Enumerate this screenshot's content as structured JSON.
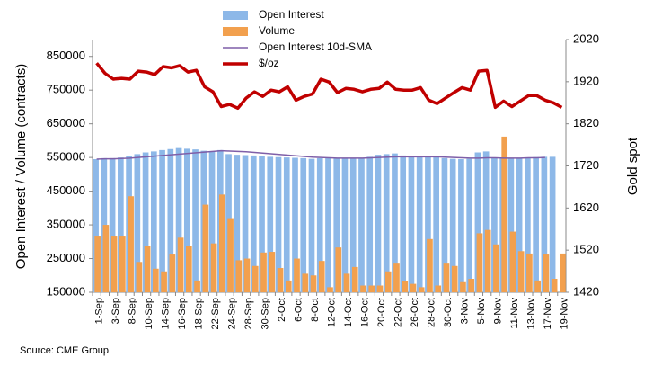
{
  "chart_data": {
    "type": "bar",
    "source": "Source: CME Group",
    "ylabel": "Open Interest / Volume (contracts)",
    "y2label": "Gold spot",
    "categories": [
      "1-Sep",
      null,
      "3-Sep",
      null,
      "8-Sep",
      null,
      "10-Sep",
      null,
      "14-Sep",
      null,
      "16-Sep",
      null,
      "18-Sep",
      null,
      "22-Sep",
      null,
      "24-Sep",
      null,
      "28-Sep",
      null,
      "30-Sep",
      null,
      "2-Oct",
      null,
      "6-Oct",
      null,
      "8-Oct",
      null,
      "12-Oct",
      null,
      "14-Oct",
      null,
      "16-Oct",
      null,
      "20-Oct",
      null,
      "22-Oct",
      null,
      "26-Oct",
      null,
      "28-Oct",
      null,
      "30-Oct",
      null,
      "3-Nov",
      null,
      "5-Nov",
      null,
      "9-Nov",
      null,
      "11-Nov",
      null,
      "13-Nov",
      null,
      "17-Nov",
      null,
      "19-Nov"
    ],
    "ylim": [
      150000,
      900000
    ],
    "yticks": [
      150000,
      250000,
      350000,
      450000,
      550000,
      650000,
      750000,
      850000
    ],
    "y2lim": [
      1420,
      2020
    ],
    "y2ticks": [
      1420,
      1520,
      1620,
      1720,
      1820,
      1920,
      2020
    ],
    "series": [
      {
        "name": "Open Interest",
        "type": "bar",
        "color": "#8db8e8",
        "values": [
          545000,
          548000,
          548000,
          550000,
          555000,
          560000,
          565000,
          568000,
          572000,
          575000,
          578000,
          576000,
          574000,
          570000,
          568000,
          572000,
          560000,
          558000,
          557000,
          556000,
          553000,
          552000,
          551000,
          550000,
          549000,
          548000,
          546000,
          548000,
          550000,
          549000,
          548000,
          547000,
          548000,
          552000,
          558000,
          560000,
          562000,
          556000,
          555000,
          554000,
          553000,
          552000,
          548000,
          546000,
          545000,
          546000,
          565000,
          568000,
          548000,
          547000,
          548000,
          549000,
          550000,
          551000,
          552000,
          552000,
          null
        ]
      },
      {
        "name": "Volume",
        "type": "bar",
        "color": "#f2a04e",
        "values": [
          318000,
          350000,
          318000,
          318000,
          435000,
          240000,
          288000,
          220000,
          212000,
          262000,
          312000,
          288000,
          185000,
          410000,
          295000,
          440000,
          370000,
          245000,
          250000,
          228000,
          268000,
          270000,
          222000,
          185000,
          250000,
          205000,
          200000,
          243000,
          165000,
          283000,
          205000,
          225000,
          170000,
          170000,
          170000,
          212000,
          235000,
          182000,
          175000,
          165000,
          308000,
          170000,
          235000,
          228000,
          180000,
          190000,
          325000,
          335000,
          292000,
          612000,
          330000,
          272000,
          265000,
          185000,
          262000,
          190000,
          265000
        ]
      },
      {
        "name": "Open Interest 10d-SMA",
        "type": "line",
        "color": "#7f5fa8",
        "values": [
          545000,
          546000,
          546000,
          547000,
          548000,
          550000,
          552000,
          554000,
          556000,
          558000,
          560000,
          562000,
          564000,
          566000,
          568000,
          570000,
          569000,
          568000,
          567000,
          565000,
          563000,
          561000,
          559000,
          557000,
          555000,
          553000,
          551000,
          550000,
          549000,
          548000,
          548000,
          548000,
          548000,
          549000,
          550000,
          551000,
          552000,
          552000,
          552000,
          552000,
          552000,
          552000,
          551000,
          550000,
          549000,
          548000,
          548000,
          549000,
          549000,
          548000,
          548000,
          548000,
          549000,
          549000,
          550000,
          null,
          null
        ]
      },
      {
        "name": "$/oz",
        "type": "line",
        "axis": "y2",
        "color": "#c00000",
        "values": [
          1964,
          1940,
          1926,
          1928,
          1926,
          1945,
          1943,
          1937,
          1956,
          1953,
          1958,
          1943,
          1947,
          1908,
          1896,
          1861,
          1866,
          1857,
          1881,
          1896,
          1885,
          1900,
          1896,
          1908,
          1876,
          1885,
          1891,
          1926,
          1919,
          1894,
          1904,
          1902,
          1896,
          1902,
          1904,
          1919,
          1902,
          1900,
          1900,
          1906,
          1876,
          1868,
          1881,
          1894,
          1906,
          1900,
          1945,
          1947,
          1859,
          1874,
          1861,
          1874,
          1887,
          1887,
          1876,
          1870,
          1859
        ]
      }
    ]
  }
}
